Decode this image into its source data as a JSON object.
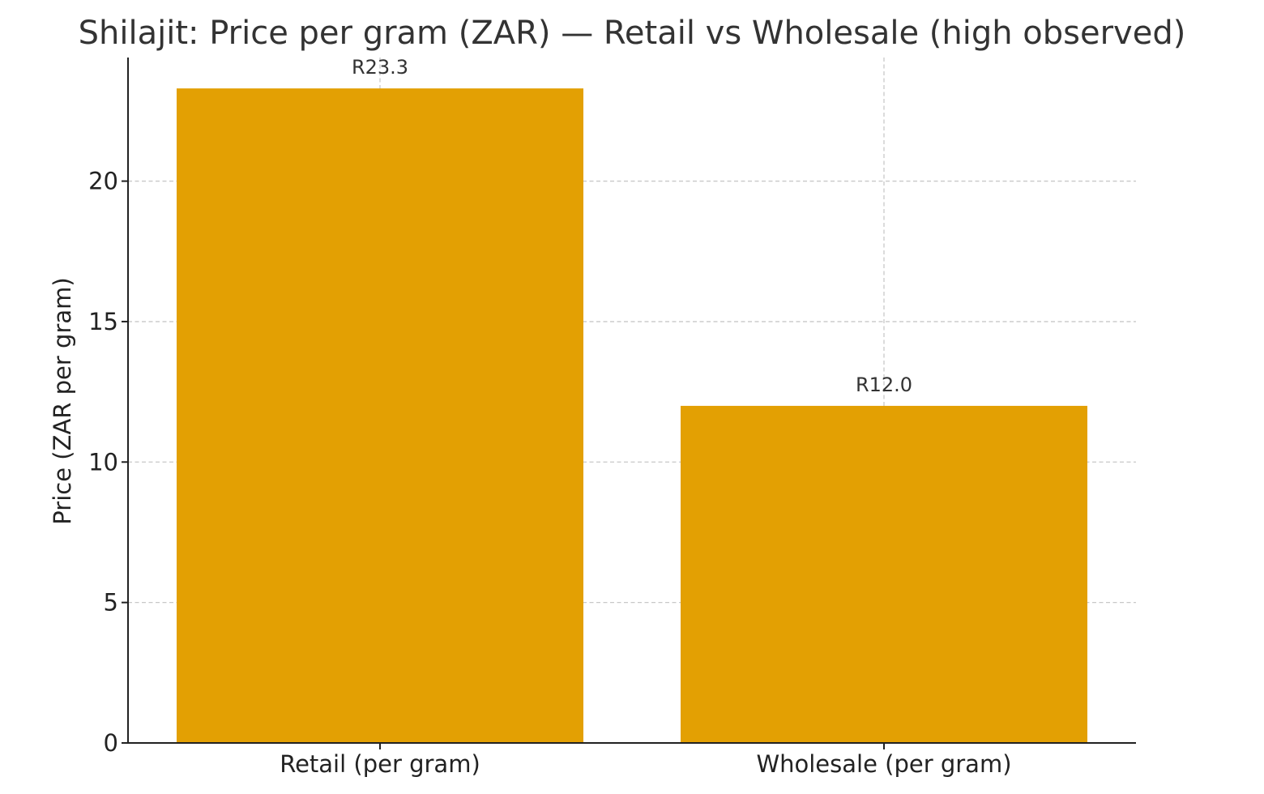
{
  "chart_data": {
    "type": "bar",
    "title": "Shilajit: Price per gram (ZAR) — Retail vs Wholesale (high observed)",
    "xlabel": "",
    "ylabel": "Price (ZAR per gram)",
    "categories": [
      "Retail (per gram)",
      "Wholesale (per gram)"
    ],
    "values": [
      23.3,
      12.0
    ],
    "data_labels": [
      "R23.3",
      "R12.0"
    ],
    "ylim": [
      0,
      24.4
    ],
    "yticks": [
      0,
      5,
      10,
      15,
      20
    ],
    "ytick_labels": [
      "0",
      "5",
      "10",
      "15",
      "20"
    ],
    "grid": true,
    "bar_color": "#E3A003"
  }
}
